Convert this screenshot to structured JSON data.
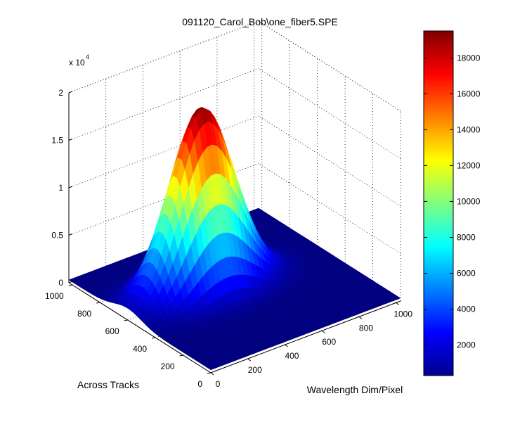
{
  "chart_data": {
    "type": "surface",
    "title": "091120_Carol_Bob\\one_fiber5.SPE",
    "xlabel": "Wavelength Dim/Pixel",
    "ylabel": "Across Tracks",
    "zlabel": "",
    "z_multiplier_label": "x 10",
    "z_multiplier_exponent": "4",
    "xlim": [
      0,
      1024
    ],
    "ylim": [
      0,
      1024
    ],
    "zlim": [
      0,
      2
    ],
    "x_ticks": [
      "0",
      "200",
      "400",
      "600",
      "800",
      "1000"
    ],
    "y_ticks": [
      "0",
      "200",
      "400",
      "600",
      "800",
      "1000"
    ],
    "z_ticks": [
      "0",
      "0.5",
      "1",
      "1.5",
      "2"
    ],
    "grid": true,
    "colormap": "jet",
    "colorbar": {
      "min": 300,
      "max": 19500,
      "ticks": [
        "2000",
        "4000",
        "6000",
        "8000",
        "10000",
        "12000",
        "14000",
        "16000",
        "18000"
      ]
    },
    "peak": {
      "x_center": 400,
      "x_width": 230,
      "y_center": 600,
      "y_width": 140,
      "max_value": 19500
    }
  }
}
